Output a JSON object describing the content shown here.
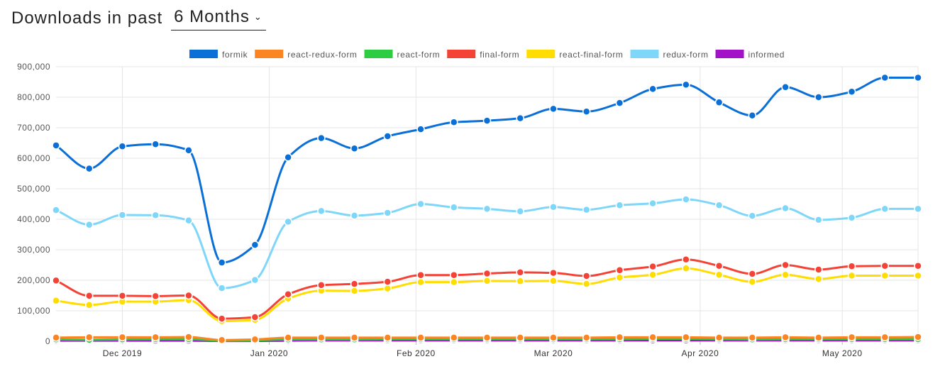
{
  "header": {
    "title": "Downloads in past",
    "period": "6 Months"
  },
  "chart_data": {
    "type": "line",
    "title": "",
    "xlabel": "",
    "ylabel": "",
    "ylim": [
      0,
      900000
    ],
    "yticks": [
      0,
      100000,
      200000,
      300000,
      400000,
      500000,
      600000,
      700000,
      800000,
      900000
    ],
    "ytick_labels": [
      "0",
      "100,000",
      "200,000",
      "300,000",
      "400,000",
      "500,000",
      "600,000",
      "700,000",
      "800,000",
      "900,000"
    ],
    "xlim": [
      "2019-11-17",
      "2020-05-17"
    ],
    "xticks": [
      "2019-12-01",
      "2020-01-01",
      "2020-02-01",
      "2020-03-01",
      "2020-04-01",
      "2020-05-01"
    ],
    "xtick_labels": [
      "Dec 2019",
      "Jan 2020",
      "Feb 2020",
      "Mar 2020",
      "Apr 2020",
      "May 2020"
    ],
    "grid": true,
    "legend_position": "top",
    "x": [
      "2019-11-17",
      "2019-11-24",
      "2019-12-01",
      "2019-12-08",
      "2019-12-15",
      "2019-12-22",
      "2019-12-29",
      "2020-01-05",
      "2020-01-12",
      "2020-01-19",
      "2020-01-26",
      "2020-02-02",
      "2020-02-09",
      "2020-02-16",
      "2020-02-23",
      "2020-03-01",
      "2020-03-08",
      "2020-03-15",
      "2020-03-22",
      "2020-03-29",
      "2020-04-05",
      "2020-04-12",
      "2020-04-19",
      "2020-04-26",
      "2020-05-03",
      "2020-05-10",
      "2020-05-17"
    ],
    "series": [
      {
        "name": "formik",
        "color": "#0a6fd6",
        "values": [
          642000,
          566000,
          639000,
          646000,
          626000,
          258000,
          316000,
          603000,
          666000,
          632000,
          672000,
          695000,
          718000,
          723000,
          731000,
          762000,
          753000,
          781000,
          827000,
          841000,
          783000,
          740000,
          833000,
          800000,
          818000,
          864000,
          864000
        ]
      },
      {
        "name": "react-redux-form",
        "color": "#fb8423",
        "values": [
          12000,
          13000,
          13000,
          13000,
          14000,
          4000,
          6000,
          12000,
          12000,
          12000,
          12000,
          12000,
          12000,
          12000,
          12000,
          12000,
          12000,
          13000,
          13000,
          13000,
          12000,
          12000,
          13000,
          12000,
          13000,
          13000,
          14000
        ]
      },
      {
        "name": "react-form",
        "color": "#2ecc40",
        "values": [
          6000,
          5000,
          6000,
          7000,
          7000,
          2000,
          3000,
          6000,
          6000,
          6000,
          7000,
          7000,
          7000,
          7000,
          7000,
          7000,
          7000,
          7000,
          8000,
          8000,
          7000,
          6000,
          7000,
          7000,
          7000,
          7000,
          7000
        ]
      },
      {
        "name": "final-form",
        "color": "#f44336",
        "values": [
          199000,
          149000,
          149000,
          148000,
          150000,
          74000,
          79000,
          154000,
          184000,
          188000,
          195000,
          217000,
          217000,
          222000,
          226000,
          224000,
          214000,
          233000,
          245000,
          268000,
          247000,
          221000,
          250000,
          235000,
          246000,
          247000,
          247000
        ]
      },
      {
        "name": "react-final-form",
        "color": "#ffdd00",
        "values": [
          133000,
          119000,
          130000,
          130000,
          135000,
          66000,
          70000,
          140000,
          166000,
          165000,
          173000,
          194000,
          194000,
          198000,
          197000,
          198000,
          188000,
          209000,
          218000,
          239000,
          218000,
          195000,
          218000,
          204000,
          215000,
          215000,
          215000
        ]
      },
      {
        "name": "redux-form",
        "color": "#7ed6f9",
        "values": [
          430000,
          382000,
          414000,
          413000,
          396000,
          174000,
          201000,
          392000,
          427000,
          412000,
          421000,
          450000,
          439000,
          434000,
          426000,
          440000,
          431000,
          446000,
          452000,
          465000,
          446000,
          411000,
          436000,
          398000,
          405000,
          434000,
          434000
        ]
      },
      {
        "name": "informed",
        "color": "#a312c8",
        "values": [
          2000,
          2000,
          2000,
          2000,
          2000,
          1000,
          1000,
          2000,
          3000,
          3000,
          3000,
          3000,
          3000,
          3000,
          3000,
          3000,
          3000,
          3000,
          3000,
          3000,
          3000,
          3000,
          3000,
          3000,
          3000,
          3000,
          3000
        ]
      }
    ]
  }
}
